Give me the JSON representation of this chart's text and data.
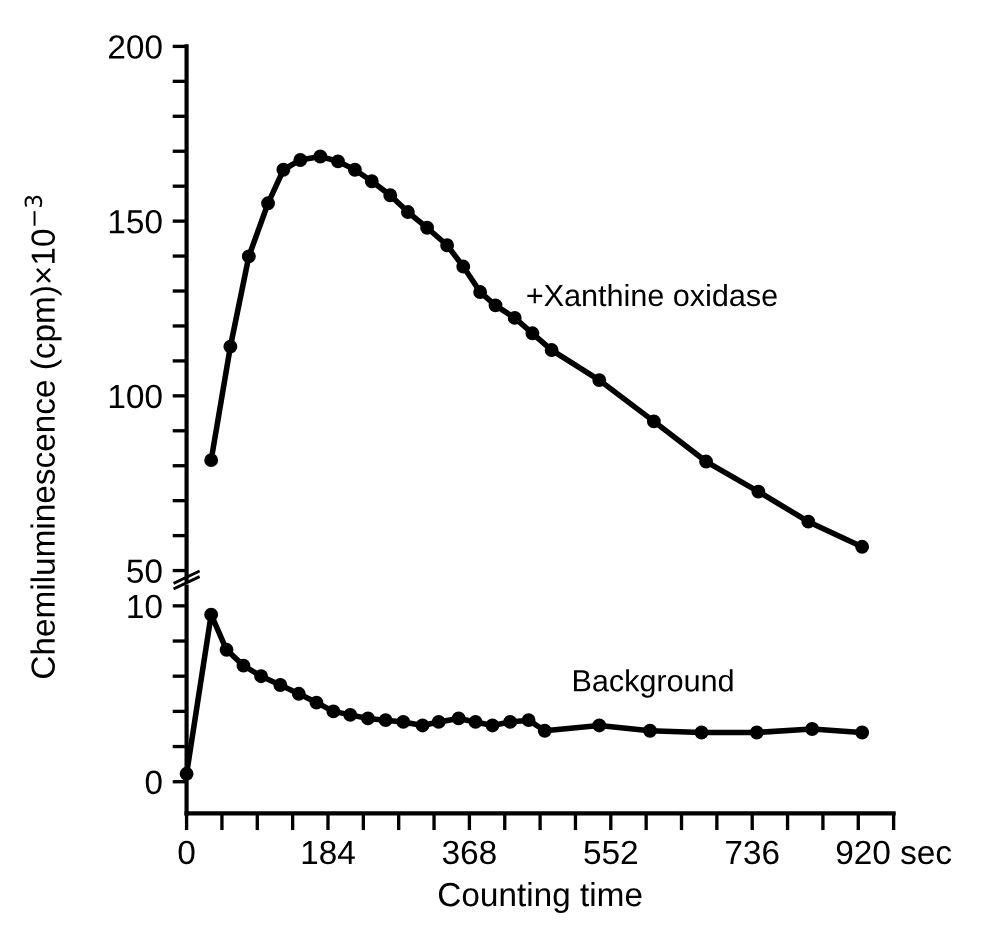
{
  "chart_data": [
    {
      "type": "line",
      "ylabel": "Chemiluminescence (cpm)×10$^{−3}$",
      "marker": "circle",
      "line_style": "solid",
      "grid": false,
      "legend": false,
      "tick_labels": "y",
      "xlim": [
        0,
        920
      ],
      "ylim": [
        47.3,
        200
      ],
      "yticks": [
        50,
        {
          "value": 60,
          "label": null
        },
        {
          "value": 70,
          "label": null
        },
        {
          "value": 80,
          "label": null
        },
        {
          "value": 90,
          "label": null
        },
        100,
        {
          "value": 110,
          "label": null
        },
        {
          "value": 120,
          "label": null
        },
        {
          "value": 130,
          "label": null
        },
        {
          "value": 140,
          "label": null
        },
        150,
        {
          "value": 160,
          "label": null
        },
        {
          "value": 170,
          "label": null
        },
        {
          "value": 180,
          "label": null
        },
        {
          "value": 190,
          "label": null
        },
        200
      ],
      "series": [
        {
          "name": "+Xanthine oxidase",
          "color": "#000000",
          "x": [
            32,
            57,
            81,
            106,
            126,
            148,
            174,
            197,
            219,
            241,
            265,
            288,
            313,
            339,
            360,
            382,
            402,
            427,
            450,
            475,
            537,
            608,
            676,
            744,
            809,
            879
          ],
          "values": [
            81.6,
            114.1,
            139.9,
            155.1,
            164.7,
            167.5,
            168.5,
            167.1,
            164.7,
            161.4,
            157.4,
            152.6,
            148.1,
            143.1,
            137.0,
            129.7,
            125.9,
            122.3,
            117.9,
            113.1,
            104.5,
            92.7,
            81.2,
            72.6,
            64.0,
            56.8
          ]
        }
      ]
    },
    {
      "type": "line",
      "xlabel": "Counting time",
      "marker": "circle",
      "line_style": "solid",
      "grid": false,
      "legend": false,
      "xlim": [
        0,
        920
      ],
      "ylim": [
        -1.8,
        11.1
      ],
      "xticks": [
        0,
        {
          "value": 46,
          "label": null
        },
        {
          "value": 92,
          "label": null
        },
        {
          "value": 138,
          "label": null
        },
        184,
        {
          "value": 230,
          "label": null
        },
        {
          "value": 276,
          "label": null
        },
        {
          "value": 322,
          "label": null
        },
        368,
        {
          "value": 414,
          "label": null
        },
        {
          "value": 460,
          "label": null
        },
        {
          "value": 506,
          "label": null
        },
        552,
        {
          "value": 598,
          "label": null
        },
        {
          "value": 644,
          "label": null
        },
        {
          "value": 690,
          "label": null
        },
        736,
        {
          "value": 782,
          "label": null
        },
        {
          "value": 828,
          "label": null
        },
        {
          "value": 874,
          "label": null
        },
        {
          "value": 920,
          "label": "920 sec"
        }
      ],
      "yticks": [
        0,
        {
          "value": 2,
          "label": null
        },
        {
          "value": 4,
          "label": null
        },
        {
          "value": 6,
          "label": null
        },
        {
          "value": 8,
          "label": null
        },
        10
      ],
      "series": [
        {
          "name": "Background",
          "color": "#000000",
          "x": [
            0,
            32,
            52,
            74,
            97,
            122,
            146,
            169,
            191,
            213,
            236,
            259,
            282,
            307,
            328,
            354,
            376,
            398,
            421,
            445,
            466,
            537,
            603,
            670,
            742,
            814,
            879
          ],
          "values": [
            0.45,
            9.5,
            7.5,
            6.6,
            6.0,
            5.5,
            5.0,
            4.5,
            4.0,
            3.8,
            3.6,
            3.5,
            3.4,
            3.2,
            3.4,
            3.6,
            3.4,
            3.2,
            3.4,
            3.5,
            2.9,
            3.2,
            2.9,
            2.8,
            2.8,
            3.0,
            2.8
          ]
        }
      ]
    }
  ]
}
